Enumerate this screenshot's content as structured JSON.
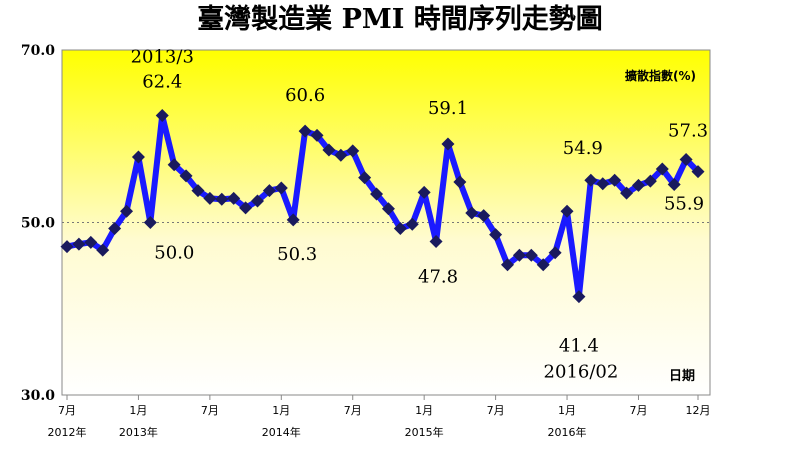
{
  "chart_data": {
    "type": "line",
    "title": "臺灣製造業 PMI 時間序列走勢圖",
    "ylabel": "擴散指數(%)",
    "xlabel": "日期",
    "ylim": [
      30,
      70
    ],
    "yticks": [
      "30.0",
      "50.0",
      "70.0"
    ],
    "reference_line": 50,
    "grid": false,
    "colors": {
      "line": "#1a1aff",
      "marker": "#1a1a5e",
      "background_top": "#ffff00",
      "background_bottom": "#ffffff",
      "reference": "#777777"
    },
    "x": [
      "2012-07",
      "2012-08",
      "2012-09",
      "2012-10",
      "2012-11",
      "2012-12",
      "2013-01",
      "2013-02",
      "2013-03",
      "2013-04",
      "2013-05",
      "2013-06",
      "2013-07",
      "2013-08",
      "2013-09",
      "2013-10",
      "2013-11",
      "2013-12",
      "2014-01",
      "2014-02",
      "2014-03",
      "2014-04",
      "2014-05",
      "2014-06",
      "2014-07",
      "2014-08",
      "2014-09",
      "2014-10",
      "2014-11",
      "2014-12",
      "2015-01",
      "2015-02",
      "2015-03",
      "2015-04",
      "2015-05",
      "2015-06",
      "2015-07",
      "2015-08",
      "2015-09",
      "2015-10",
      "2015-11",
      "2015-12",
      "2016-01",
      "2016-02",
      "2016-03",
      "2016-04",
      "2016-05",
      "2016-06",
      "2016-07",
      "2016-08",
      "2016-09",
      "2016-10",
      "2016-11",
      "2016-12"
    ],
    "values": [
      47.2,
      47.5,
      47.7,
      46.8,
      49.3,
      51.3,
      57.6,
      50.0,
      62.4,
      56.7,
      55.4,
      53.7,
      52.8,
      52.7,
      52.8,
      51.7,
      52.5,
      53.7,
      54.0,
      50.3,
      60.6,
      60.1,
      58.4,
      57.8,
      58.3,
      55.2,
      53.3,
      51.6,
      49.3,
      49.8,
      53.5,
      47.8,
      59.1,
      54.7,
      51.1,
      50.8,
      48.6,
      45.1,
      46.2,
      46.2,
      45.1,
      46.5,
      51.3,
      41.4,
      54.9,
      54.5,
      54.9,
      53.4,
      54.3,
      54.8,
      56.2,
      54.4,
      57.3,
      55.9
    ],
    "tick_labels": [
      {
        "index": 0,
        "label": "7月",
        "year": "2012年"
      },
      {
        "index": 6,
        "label": "1月",
        "year": "2013年"
      },
      {
        "index": 12,
        "label": "7月",
        "year": ""
      },
      {
        "index": 18,
        "label": "1月",
        "year": "2014年"
      },
      {
        "index": 24,
        "label": "7月",
        "year": ""
      },
      {
        "index": 30,
        "label": "1月",
        "year": "2015年"
      },
      {
        "index": 36,
        "label": "7月",
        "year": ""
      },
      {
        "index": 42,
        "label": "1月",
        "year": "2016年"
      },
      {
        "index": 48,
        "label": "7月",
        "year": ""
      },
      {
        "index": 53,
        "label": "12月",
        "year": ""
      }
    ],
    "annotations": [
      {
        "index": 8,
        "text": "62.4",
        "note": "2013/3"
      },
      {
        "index": 7,
        "text": "50.0"
      },
      {
        "index": 20,
        "text": "60.6"
      },
      {
        "index": 19,
        "text": "50.3"
      },
      {
        "index": 32,
        "text": "59.1"
      },
      {
        "index": 31,
        "text": "47.8"
      },
      {
        "index": 44,
        "text": "54.9"
      },
      {
        "index": 43,
        "text": "41.4",
        "note": "2016/02"
      },
      {
        "index": 52,
        "text": "57.3"
      },
      {
        "index": 53,
        "text": "55.9"
      }
    ]
  }
}
